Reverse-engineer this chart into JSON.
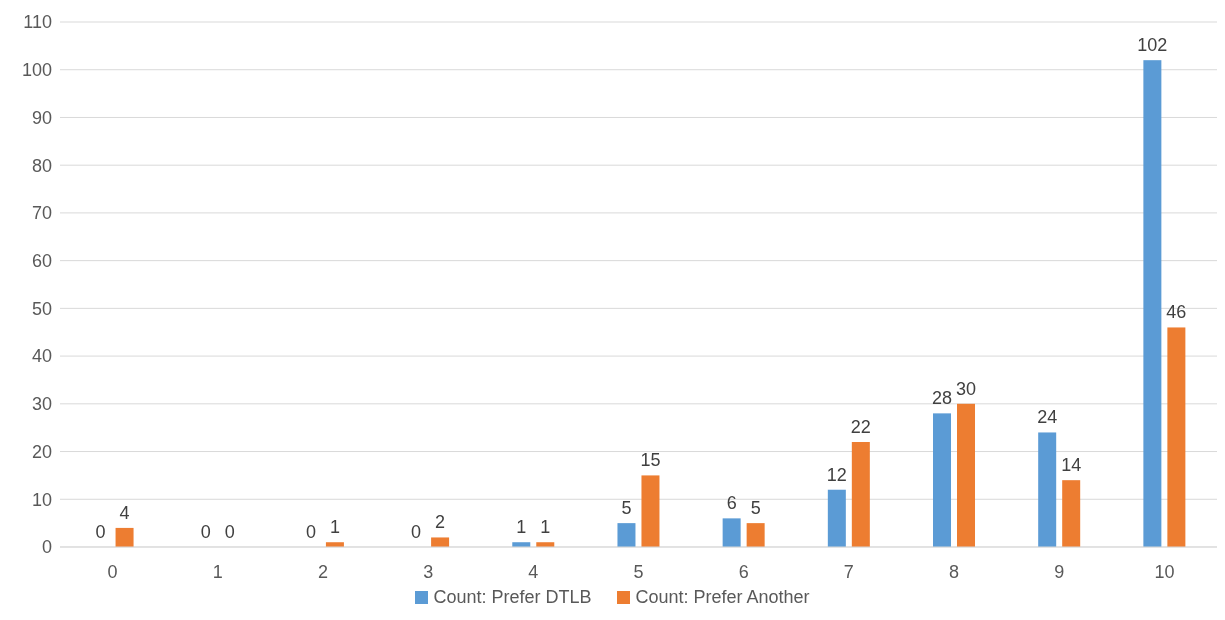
{
  "chart_data": {
    "type": "bar",
    "categories": [
      "0",
      "1",
      "2",
      "3",
      "4",
      "5",
      "6",
      "7",
      "8",
      "9",
      "10"
    ],
    "series": [
      {
        "name": "Count: Prefer DTLB",
        "color": "#5b9bd5",
        "values": [
          0,
          0,
          0,
          0,
          1,
          5,
          6,
          12,
          28,
          24,
          102
        ]
      },
      {
        "name": "Count: Prefer Another",
        "color": "#ed7d31",
        "values": [
          4,
          0,
          1,
          2,
          1,
          15,
          5,
          22,
          30,
          14,
          46
        ]
      }
    ],
    "ylim": [
      0,
      110
    ],
    "yticks": [
      0,
      10,
      20,
      30,
      40,
      50,
      60,
      70,
      80,
      90,
      100,
      110
    ],
    "grid": "y",
    "legend": "bottom",
    "data_labels": true
  }
}
